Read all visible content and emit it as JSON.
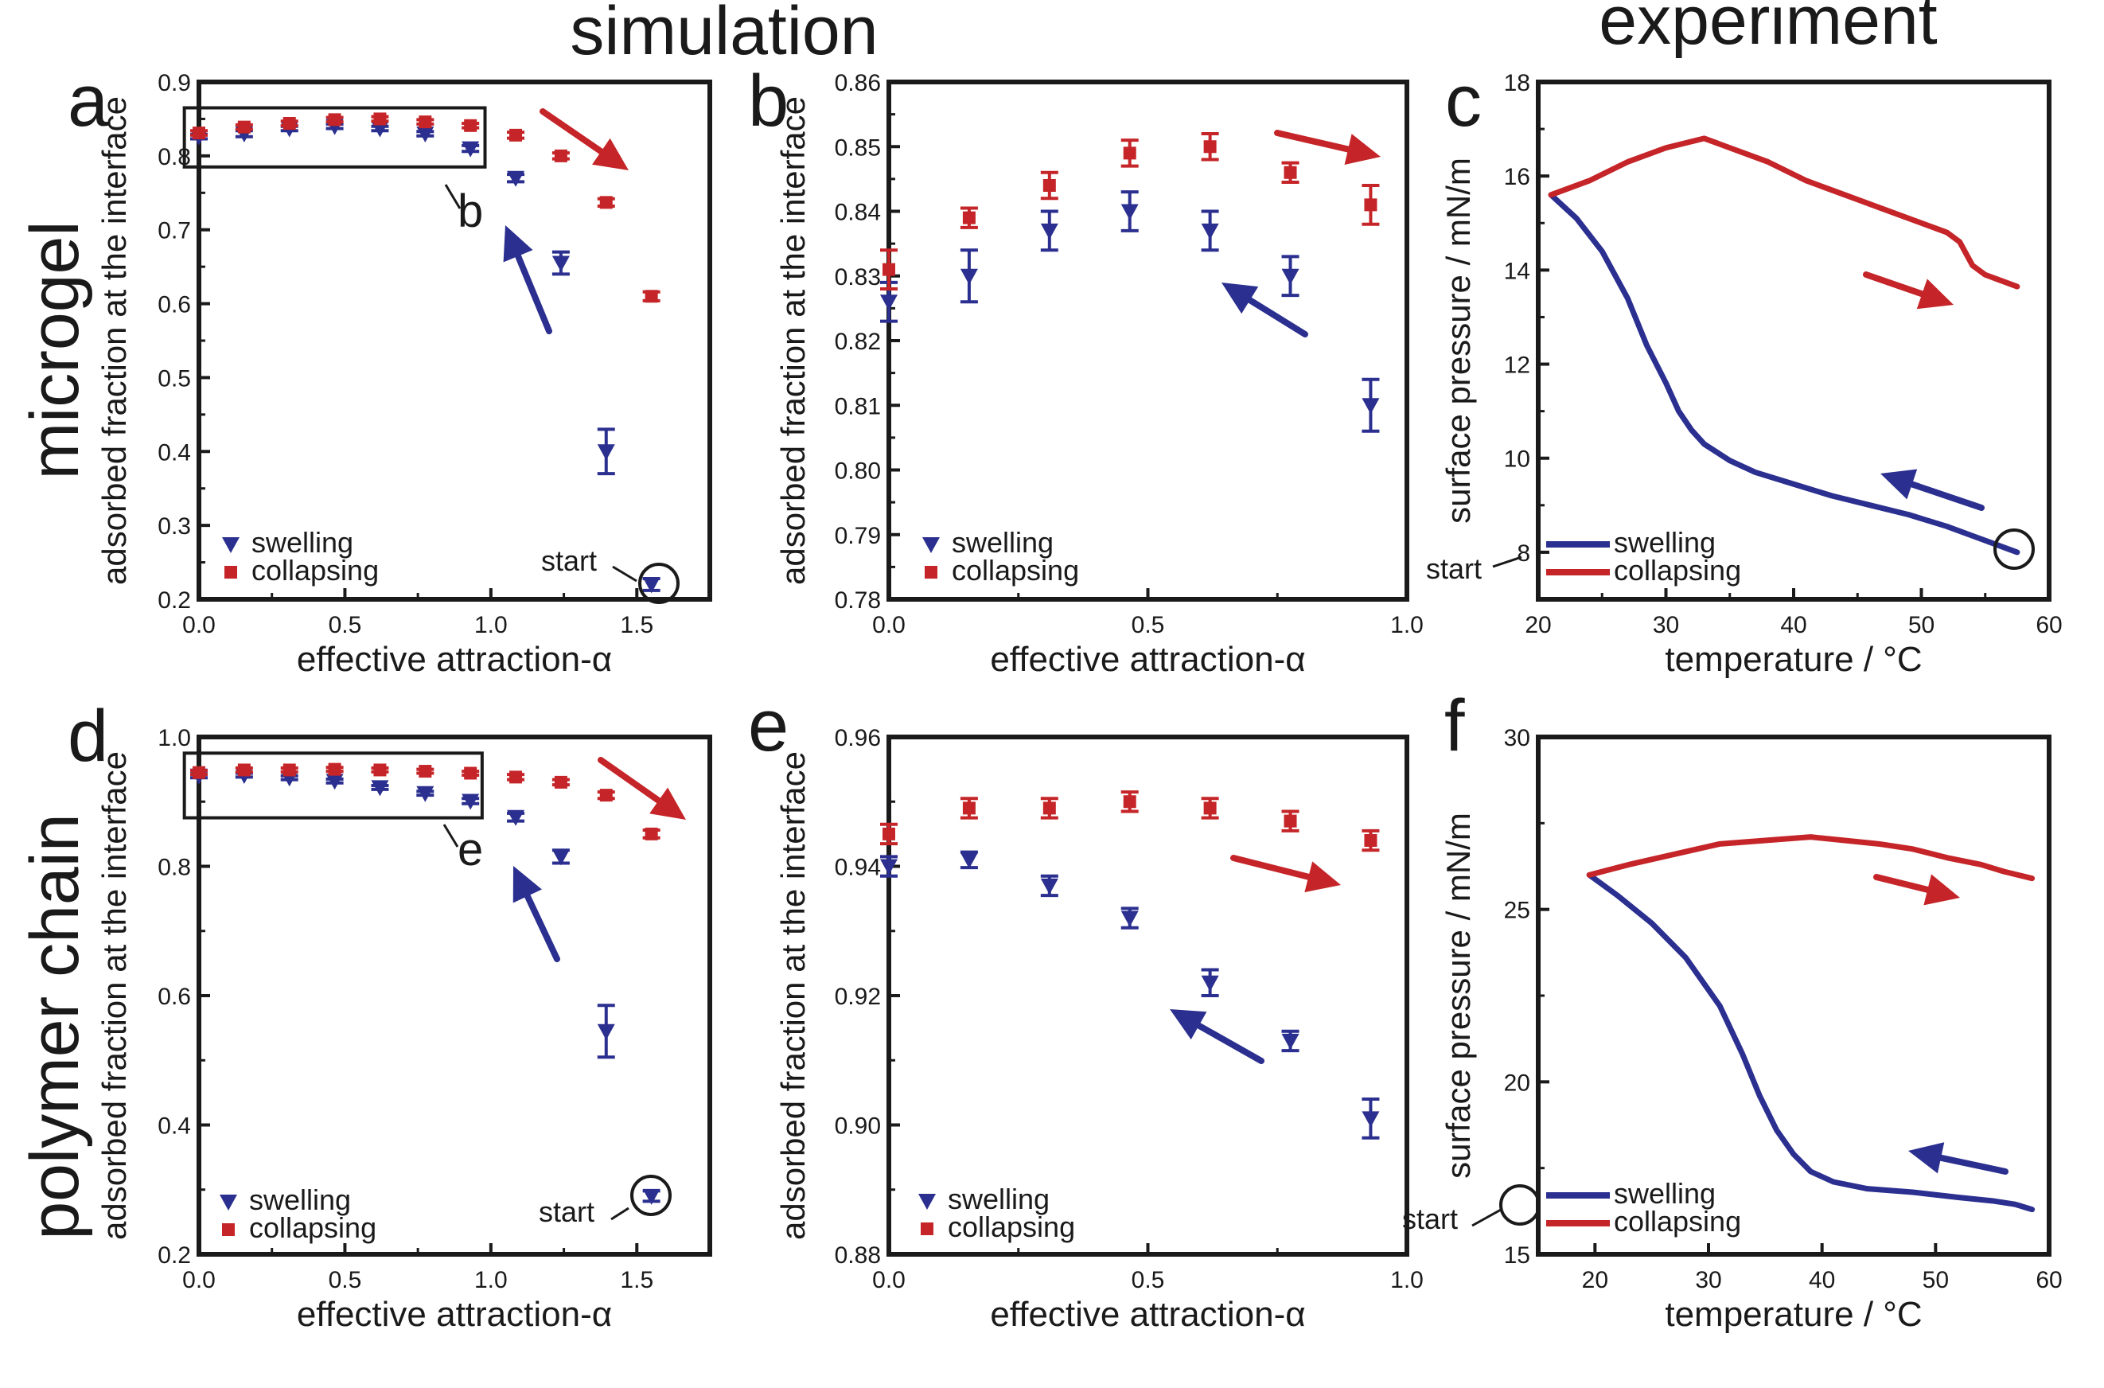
{
  "header": {
    "simulation": "simulation",
    "experiment": "experiment",
    "row1": "microgel",
    "row2": "polymer chain"
  },
  "colors": {
    "swelling": "#2b2f8f",
    "collapsing": "#c52528",
    "axis": "#1a1a1a"
  },
  "chart_data": [
    {
      "id": "a",
      "panel_letter": "a",
      "type": "scatter",
      "xlabel": "effective attraction-α",
      "ylabel": "adsorbed fraction at the interface",
      "xlim": [
        0,
        1.75
      ],
      "ylim": [
        0.2,
        0.9
      ],
      "xticks": [
        "0.0",
        "0.5",
        "1.0",
        "1.5"
      ],
      "xtick_values": [
        0,
        0.5,
        1.0,
        1.5
      ],
      "yticks": [
        "0.2",
        "0.3",
        "0.4",
        "0.5",
        "0.6",
        "0.7",
        "0.8",
        "0.9"
      ],
      "ytick_values": [
        0.2,
        0.3,
        0.4,
        0.5,
        0.6,
        0.7,
        0.8,
        0.9
      ],
      "legend": {
        "swelling": "swelling",
        "collapsing": "collapsing"
      },
      "start_label": "start",
      "inset_label": "b",
      "series": [
        {
          "name": "swelling",
          "marker": "triangle-down",
          "x": [
            0.0,
            0.155,
            0.31,
            0.465,
            0.62,
            0.775,
            0.93,
            1.085,
            1.24,
            1.395,
            1.55
          ],
          "y": [
            0.826,
            0.83,
            0.837,
            0.84,
            0.837,
            0.83,
            0.81,
            0.77,
            0.655,
            0.4,
            0.22
          ],
          "err": [
            0.003,
            0.004,
            0.003,
            0.003,
            0.003,
            0.003,
            0.004,
            0.005,
            0.015,
            0.03,
            0.008
          ]
        },
        {
          "name": "collapsing",
          "marker": "square",
          "x": [
            0.0,
            0.155,
            0.31,
            0.465,
            0.62,
            0.775,
            0.93,
            1.085,
            1.24,
            1.395,
            1.55
          ],
          "y": [
            0.831,
            0.839,
            0.844,
            0.849,
            0.85,
            0.846,
            0.841,
            0.828,
            0.8,
            0.737,
            0.61
          ],
          "err": [
            0.003,
            0.003,
            0.003,
            0.003,
            0.003,
            0.003,
            0.003,
            0.004,
            0.004,
            0.005,
            0.006
          ]
        }
      ]
    },
    {
      "id": "b",
      "panel_letter": "b",
      "type": "scatter",
      "xlabel": "effective attraction-α",
      "ylabel": "adsorbed fraction at the interface",
      "xlim": [
        0,
        1.0
      ],
      "ylim": [
        0.78,
        0.86
      ],
      "xticks": [
        "0.0",
        "0.5",
        "1.0"
      ],
      "xtick_values": [
        0,
        0.5,
        1.0
      ],
      "yticks": [
        "0.78",
        "0.79",
        "0.80",
        "0.81",
        "0.82",
        "0.83",
        "0.84",
        "0.85",
        "0.86"
      ],
      "ytick_values": [
        0.78,
        0.79,
        0.8,
        0.81,
        0.82,
        0.83,
        0.84,
        0.85,
        0.86
      ],
      "legend": {
        "swelling": "swelling",
        "collapsing": "collapsing"
      },
      "series": [
        {
          "name": "swelling",
          "marker": "triangle-down",
          "x": [
            0.0,
            0.155,
            0.31,
            0.465,
            0.62,
            0.775,
            0.93
          ],
          "y": [
            0.826,
            0.83,
            0.837,
            0.84,
            0.837,
            0.83,
            0.81
          ],
          "err": [
            0.003,
            0.004,
            0.003,
            0.003,
            0.003,
            0.003,
            0.004
          ]
        },
        {
          "name": "collapsing",
          "marker": "square",
          "x": [
            0.0,
            0.155,
            0.31,
            0.465,
            0.62,
            0.775,
            0.93
          ],
          "y": [
            0.831,
            0.839,
            0.844,
            0.849,
            0.85,
            0.846,
            0.841
          ],
          "err": [
            0.003,
            0.0015,
            0.002,
            0.002,
            0.002,
            0.0015,
            0.003
          ]
        }
      ]
    },
    {
      "id": "c",
      "panel_letter": "c",
      "type": "line",
      "xlabel": "temperature / °C",
      "ylabel": "surface pressure / mN/m",
      "xlim": [
        20,
        60
      ],
      "ylim": [
        7,
        18
      ],
      "xticks": [
        "20",
        "30",
        "40",
        "50",
        "60"
      ],
      "xtick_values": [
        20,
        30,
        40,
        50,
        60
      ],
      "yticks": [
        "8",
        "10",
        "12",
        "14",
        "16",
        "18"
      ],
      "ytick_values": [
        8,
        10,
        12,
        14,
        16,
        18
      ],
      "legend": {
        "swelling": "swelling",
        "collapsing": "collapsing"
      },
      "start_label": "start",
      "series": [
        {
          "name": "swelling",
          "x": [
            21,
            23,
            25,
            27,
            28.5,
            30,
            31,
            32,
            33,
            35,
            37,
            40,
            43,
            46,
            49,
            52,
            54,
            56,
            57.5
          ],
          "y": [
            15.6,
            15.1,
            14.4,
            13.4,
            12.4,
            11.6,
            11.0,
            10.6,
            10.3,
            9.95,
            9.7,
            9.45,
            9.2,
            9.0,
            8.8,
            8.55,
            8.35,
            8.15,
            8.0
          ]
        },
        {
          "name": "collapsing",
          "x": [
            21,
            24,
            27,
            30,
            33,
            35,
            38,
            41,
            44,
            47,
            50,
            52,
            53,
            54,
            55,
            56,
            57.5
          ],
          "y": [
            15.6,
            15.9,
            16.3,
            16.6,
            16.8,
            16.6,
            16.3,
            15.9,
            15.6,
            15.3,
            15.0,
            14.8,
            14.6,
            14.1,
            13.9,
            13.8,
            13.65
          ]
        }
      ]
    },
    {
      "id": "d",
      "panel_letter": "d",
      "type": "scatter",
      "xlabel": "effective attraction-α",
      "ylabel": "adsorbed fraction at the interface",
      "xlim": [
        0,
        1.75
      ],
      "ylim": [
        0.2,
        1.0
      ],
      "xticks": [
        "0.0",
        "0.5",
        "1.0",
        "1.5"
      ],
      "xtick_values": [
        0,
        0.5,
        1.0,
        1.5
      ],
      "yticks": [
        "0.2",
        "0.4",
        "0.6",
        "0.8",
        "1.0"
      ],
      "ytick_values": [
        0.2,
        0.4,
        0.6,
        0.8,
        1.0
      ],
      "legend": {
        "swelling": "swelling",
        "collapsing": "collapsing"
      },
      "start_label": "start",
      "inset_label": "e",
      "series": [
        {
          "name": "swelling",
          "marker": "triangle-down",
          "x": [
            0.0,
            0.155,
            0.31,
            0.465,
            0.62,
            0.775,
            0.93,
            1.085,
            1.24,
            1.395,
            1.55
          ],
          "y": [
            0.94,
            0.941,
            0.937,
            0.932,
            0.922,
            0.913,
            0.901,
            0.876,
            0.815,
            0.545,
            0.29
          ],
          "err": [
            0.003,
            0.003,
            0.003,
            0.003,
            0.003,
            0.003,
            0.004,
            0.006,
            0.01,
            0.04,
            0.008
          ]
        },
        {
          "name": "collapsing",
          "marker": "square",
          "x": [
            0.0,
            0.155,
            0.31,
            0.465,
            0.62,
            0.775,
            0.93,
            1.085,
            1.24,
            1.395,
            1.55
          ],
          "y": [
            0.945,
            0.949,
            0.949,
            0.95,
            0.949,
            0.947,
            0.944,
            0.938,
            0.93,
            0.91,
            0.85
          ],
          "err": [
            0.003,
            0.003,
            0.003,
            0.003,
            0.003,
            0.003,
            0.003,
            0.004,
            0.004,
            0.005,
            0.006
          ]
        }
      ]
    },
    {
      "id": "e",
      "panel_letter": "e",
      "type": "scatter",
      "xlabel": "effective attraction-α",
      "ylabel": "adsorbed fraction at the interface",
      "xlim": [
        0,
        1.0
      ],
      "ylim": [
        0.88,
        0.96
      ],
      "xticks": [
        "0.0",
        "0.5",
        "1.0"
      ],
      "xtick_values": [
        0,
        0.5,
        1.0
      ],
      "yticks": [
        "0.88",
        "0.90",
        "0.92",
        "0.94",
        "0.96"
      ],
      "ytick_values": [
        0.88,
        0.9,
        0.92,
        0.94,
        0.96
      ],
      "legend": {
        "swelling": "swelling",
        "collapsing": "collapsing"
      },
      "series": [
        {
          "name": "swelling",
          "marker": "triangle-down",
          "x": [
            0.0,
            0.155,
            0.31,
            0.465,
            0.62,
            0.775,
            0.93
          ],
          "y": [
            0.94,
            0.941,
            0.937,
            0.932,
            0.922,
            0.913,
            0.901
          ],
          "err": [
            0.0015,
            0.0012,
            0.0015,
            0.0015,
            0.002,
            0.0015,
            0.003
          ]
        },
        {
          "name": "collapsing",
          "marker": "square",
          "x": [
            0.0,
            0.155,
            0.31,
            0.465,
            0.62,
            0.775,
            0.93
          ],
          "y": [
            0.945,
            0.949,
            0.949,
            0.95,
            0.949,
            0.947,
            0.944
          ],
          "err": [
            0.0015,
            0.0015,
            0.0015,
            0.0015,
            0.0015,
            0.0015,
            0.0015
          ]
        }
      ]
    },
    {
      "id": "f",
      "panel_letter": "f",
      "type": "line",
      "xlabel": "temperature / °C",
      "ylabel": "surface pressure / mN/m",
      "xlim": [
        15,
        60
      ],
      "ylim": [
        15,
        30
      ],
      "xticks": [
        "20",
        "30",
        "40",
        "50",
        "60"
      ],
      "xtick_values": [
        20,
        30,
        40,
        50,
        60
      ],
      "yticks": [
        "15",
        "20",
        "25",
        "30"
      ],
      "ytick_values": [
        15,
        20,
        25,
        30
      ],
      "legend": {
        "swelling": "swelling",
        "collapsing": "collapsing"
      },
      "start_label": "start",
      "series": [
        {
          "name": "swelling",
          "x": [
            19.5,
            22,
            25,
            28,
            31,
            33,
            34.5,
            36,
            37.5,
            39,
            41,
            44,
            48,
            52,
            55,
            57,
            58.5
          ],
          "y": [
            26.0,
            25.4,
            24.6,
            23.6,
            22.2,
            20.8,
            19.6,
            18.6,
            17.9,
            17.4,
            17.1,
            16.9,
            16.8,
            16.65,
            16.55,
            16.45,
            16.3
          ]
        },
        {
          "name": "collapsing",
          "x": [
            19.5,
            23,
            27,
            31,
            35,
            39,
            42,
            45,
            48,
            51,
            54,
            56,
            58.5
          ],
          "y": [
            26.0,
            26.3,
            26.6,
            26.9,
            27.0,
            27.1,
            27.0,
            26.9,
            26.75,
            26.5,
            26.3,
            26.1,
            25.9
          ]
        }
      ]
    }
  ]
}
